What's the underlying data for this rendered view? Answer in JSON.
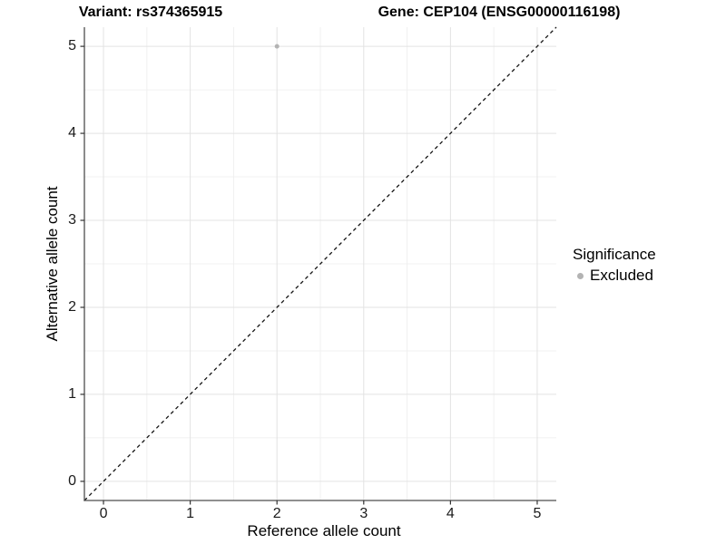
{
  "chart_data": {
    "type": "scatter",
    "title_left": "Variant: rs374365915",
    "title_right": "Gene: CEP104 (ENSG00000116198)",
    "xlabel": "Reference allele count",
    "ylabel": "Alternative allele count",
    "xlim": [
      -0.22,
      5.22
    ],
    "ylim": [
      -0.22,
      5.22
    ],
    "x_ticks": [
      0,
      1,
      2,
      3,
      4,
      5
    ],
    "y_ticks": [
      0,
      1,
      2,
      3,
      4,
      5
    ],
    "x_minor_ticks": [
      0.5,
      1.5,
      2.5,
      3.5,
      4.5
    ],
    "y_minor_ticks": [
      0.5,
      1.5,
      2.5,
      3.5,
      4.5
    ],
    "grid": true,
    "reference_line": {
      "type": "identity",
      "slope": 1,
      "intercept": 0,
      "style": "dashed",
      "color": "#141414"
    },
    "series": [
      {
        "name": "Excluded",
        "color": "#b3b3b3",
        "point_radius": 2.5,
        "points": [
          [
            2,
            5
          ]
        ]
      }
    ],
    "legend": {
      "title": "Significance",
      "position": "right",
      "items": [
        {
          "label": "Excluded",
          "color": "#b3b3b3"
        }
      ]
    },
    "colors": {
      "background": "#ffffff",
      "grid_major": "#e3e3e3",
      "grid_minor": "#f0f0f0",
      "axis_line": "#4d4d4d",
      "tick_mark": "#333333",
      "point": "#b3b3b3"
    }
  }
}
